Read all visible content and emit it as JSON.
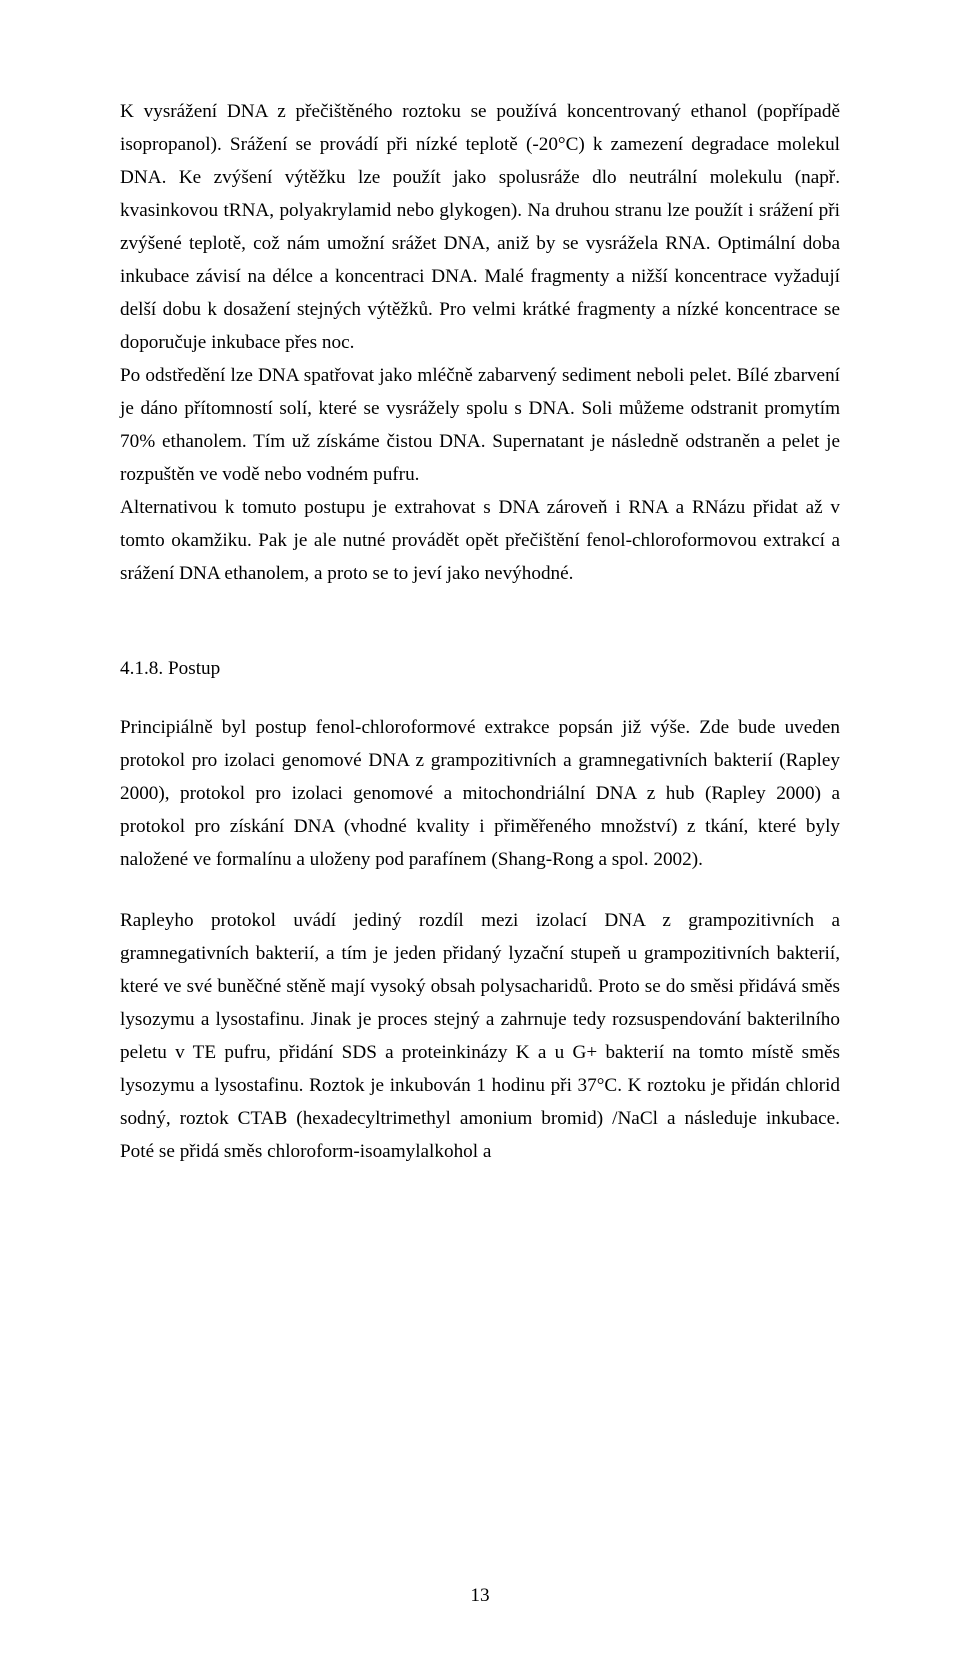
{
  "paragraphs": {
    "p1": "K vysrážení DNA z přečištěného roztoku se používá koncentrovaný ethanol (popřípadě isopropanol). Srážení se provádí při nízké teplotě (-20°C) k zamezení degradace molekul DNA. Ke zvýšení výtěžku lze použít jako spolusráže dlo neutrální molekulu (např. kvasinkovou tRNA, polyakrylamid nebo glykogen). Na druhou stranu lze použít i srážení při zvýšené teplotě, což nám umožní srážet DNA, aniž by se vysrážela RNA. Optimální doba inkubace závisí na délce a koncentraci DNA. Malé fragmenty a nižší koncentrace vyžadují delší dobu k dosažení stejných výtěžků. Pro velmi krátké fragmenty a nízké koncentrace se doporučuje inkubace přes noc.",
    "p2": "Po odstředění lze DNA spatřovat jako mléčně zabarvený sediment neboli pelet. Bílé zbarvení je dáno přítomností solí, které se vysrážely spolu s DNA. Soli můžeme odstranit promytím 70% ethanolem. Tím už získáme čistou DNA. Supernatant je následně odstraněn a pelet je rozpuštěn ve vodě nebo vodném pufru.",
    "p3": "Alternativou k tomuto postupu je extrahovat s DNA zároveň i RNA a RNázu přidat až v tomto okamžiku. Pak je ale nutné provádět opět přečištění fenol-chloroformovou extrakcí a srážení DNA ethanolem, a proto se to jeví jako nevýhodné.",
    "heading": "4.1.8. Postup",
    "p4": "Principiálně byl postup fenol-chloroformové extrakce popsán již výše. Zde bude uveden protokol pro izolaci genomové DNA z grampozitivních a gramnegativních bakterií (Rapley 2000), protokol pro izolaci genomové a mitochondriální DNA z hub (Rapley 2000) a protokol pro získání DNA (vhodné kvality i přiměřeného množství) z tkání, které byly naložené ve formalínu a uloženy pod parafínem (Shang-Rong a spol. 2002).",
    "p5": "Rapleyho protokol uvádí jediný rozdíl mezi izolací DNA z grampozitivních a gramnegativních bakterií, a tím je jeden přidaný lyzační stupeň u grampozitivních bakterií, které ve své buněčné stěně mají vysoký obsah polysacharidů. Proto se do směsi přidává směs lysozymu a lysostafinu. Jinak je proces stejný a zahrnuje tedy rozsuspendování bakterilního peletu v TE pufru, přidání SDS a proteinkinázy K a u G+ bakterií na tomto místě směs lysozymu a lysostafinu. Roztok je inkubován 1 hodinu při 37°C. K roztoku je přidán chlorid sodný, roztok CTAB (hexadecyltrimethyl amonium bromid) /NaCl a následuje inkubace. Poté se přidá směs chloroform-isoamylalkohol a"
  },
  "pageNumber": "13"
}
